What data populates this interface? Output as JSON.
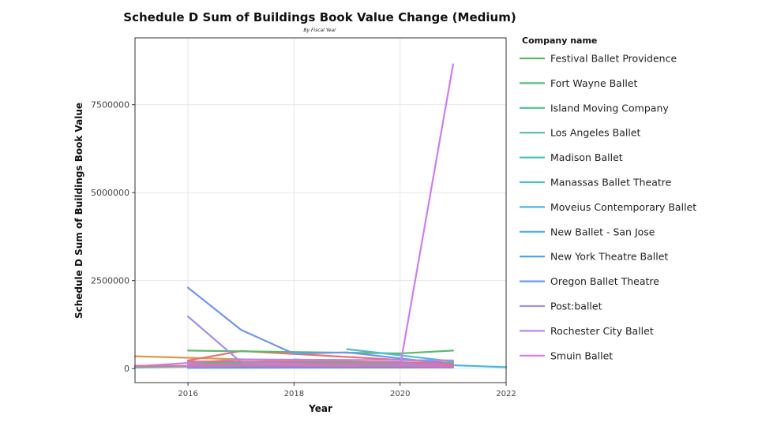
{
  "chart_data": {
    "type": "line",
    "title": "Schedule D Sum of Buildings Book Value Change (Medium)",
    "subtitle": "By Fiscal Year",
    "xlabel": "Year",
    "ylabel": "Schedule D Sum of Buildings Book Value",
    "xlim": [
      2015,
      2022
    ],
    "ylim": [
      -400000,
      9400000
    ],
    "x_ticks": [
      2016,
      2018,
      2020,
      2022
    ],
    "y_ticks": [
      0,
      2500000,
      5000000,
      7500000
    ],
    "grid": true,
    "legend_title": "Company name",
    "legend_position": "right",
    "legend": [
      {
        "name": "Festival Ballet Providence",
        "color": "#5fb86a"
      },
      {
        "name": "Fort Wayne Ballet",
        "color": "#57bc7c"
      },
      {
        "name": "Island Moving Company",
        "color": "#52bf90"
      },
      {
        "name": "Los Angeles Ballet",
        "color": "#4fc0a6"
      },
      {
        "name": "Madison Ballet",
        "color": "#4fc0bb"
      },
      {
        "name": "Manassas Ballet Theatre",
        "color": "#4dbcd0"
      },
      {
        "name": "Moveius Contemporary Ballet",
        "color": "#4cb5e0"
      },
      {
        "name": "New Ballet - San Jose",
        "color": "#4fabe8"
      },
      {
        "name": "New York Theatre Ballet",
        "color": "#4c9cec"
      },
      {
        "name": "Oregon Ballet Theatre",
        "color": "#6f96ee"
      },
      {
        "name": "Post:ballet",
        "color": "#9e8fef"
      },
      {
        "name": "Rochester City Ballet",
        "color": "#b785ee"
      },
      {
        "name": "Smuin Ballet",
        "color": "#ce7df0"
      }
    ],
    "series": [
      {
        "color": "#d99a4a",
        "x": [
          2015,
          2021
        ],
        "y": [
          350000,
          90000
        ]
      },
      {
        "color": "#e8736a",
        "x": [
          2016,
          2017,
          2021
        ],
        "y": [
          230000,
          500000,
          160000
        ]
      },
      {
        "color": "#5fb86a",
        "x": [
          2016,
          2020,
          2021
        ],
        "y": [
          510000,
          430000,
          510000
        ]
      },
      {
        "color": "#57bc7c",
        "x": [
          2016,
          2021
        ],
        "y": [
          160000,
          150000
        ]
      },
      {
        "color": "#52bf90",
        "x": [
          2015,
          2020,
          2021
        ],
        "y": [
          30000,
          140000,
          170000
        ]
      },
      {
        "color": "#4fc0a6",
        "x": [
          2016,
          2021
        ],
        "y": [
          120000,
          80000
        ]
      },
      {
        "color": "#4fc0bb",
        "x": [
          2016,
          2021
        ],
        "y": [
          50000,
          90000
        ]
      },
      {
        "color": "#4dbcd0",
        "x": [
          2019,
          2021
        ],
        "y": [
          550000,
          200000
        ]
      },
      {
        "color": "#4cb5e0",
        "x": [
          2018,
          2022
        ],
        "y": [
          260000,
          40000
        ]
      },
      {
        "color": "#4fabe8",
        "x": [
          2016,
          2021
        ],
        "y": [
          60000,
          50000
        ]
      },
      {
        "color": "#4c9cec",
        "x": [
          2016,
          2021
        ],
        "y": [
          20000,
          30000
        ]
      },
      {
        "color": "#6f96ee",
        "x": [
          2016,
          2017,
          2018,
          2019,
          2021
        ],
        "y": [
          2300000,
          1100000,
          420000,
          460000,
          120000
        ]
      },
      {
        "color": "#9e8fef",
        "x": [
          2016,
          2017,
          2019,
          2021
        ],
        "y": [
          1480000,
          180000,
          80000,
          100000
        ]
      },
      {
        "color": "#b785ee",
        "x": [
          2015,
          2017,
          2021
        ],
        "y": [
          60000,
          260000,
          230000
        ]
      },
      {
        "color": "#ce7df0",
        "x": [
          2016,
          2019,
          2020,
          2021
        ],
        "y": [
          60000,
          100000,
          60000,
          8650000
        ]
      },
      {
        "color": "#e56bd0",
        "x": [
          2016,
          2021
        ],
        "y": [
          100000,
          70000
        ]
      },
      {
        "color": "#f06aa8",
        "x": [
          2015,
          2021
        ],
        "y": [
          80000,
          60000
        ]
      },
      {
        "color": "#ee6b8c",
        "x": [
          2016,
          2020,
          2021
        ],
        "y": [
          200000,
          180000,
          120000
        ]
      }
    ]
  }
}
